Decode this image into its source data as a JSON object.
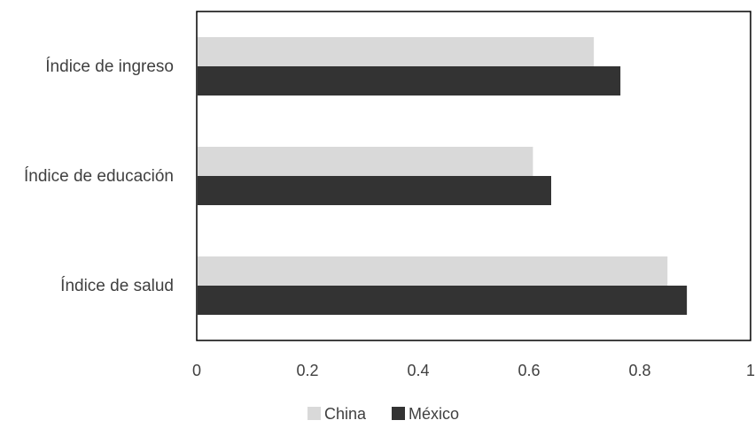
{
  "chart_data": {
    "type": "bar",
    "orientation": "horizontal",
    "categories": [
      "Índice de ingreso",
      "Índice de educación",
      "Índice de salud"
    ],
    "series": [
      {
        "name": "China",
        "values": [
          0.717,
          0.607,
          0.85
        ],
        "color": "#d9d9d9"
      },
      {
        "name": "México",
        "values": [
          0.765,
          0.64,
          0.885
        ],
        "color": "#333333"
      }
    ],
    "xlim": [
      0,
      1
    ],
    "x_ticks": [
      0,
      0.2,
      0.4,
      0.6,
      0.8,
      1
    ],
    "x_tick_labels": [
      "0",
      "0.2",
      "0.4",
      "0.6",
      "0.8",
      "1"
    ],
    "grid": false,
    "legend_position": "bottom-center",
    "title": "",
    "xlabel": "",
    "ylabel": ""
  }
}
